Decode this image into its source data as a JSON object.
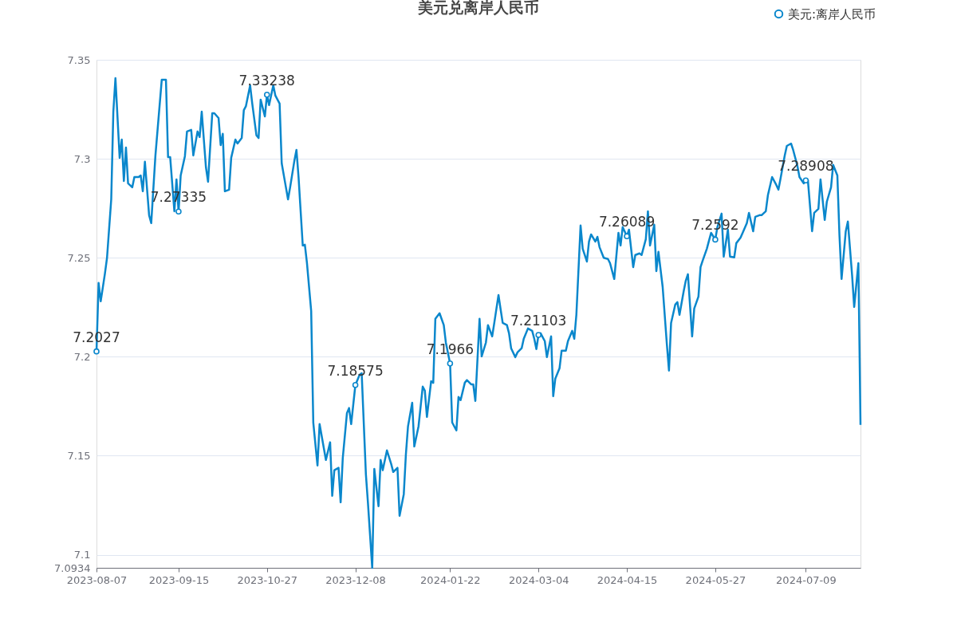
{
  "chart_data": {
    "type": "line",
    "title": "美元兑离岸人民币",
    "x": [
      "2023-08-07",
      "2023-08-08",
      "2023-08-09",
      "2023-08-11",
      "2023-08-12",
      "2023-08-14",
      "2023-08-15",
      "2023-08-16",
      "2023-08-18",
      "2023-08-19",
      "2023-08-20",
      "2023-08-21",
      "2023-08-22",
      "2023-08-24",
      "2023-08-25",
      "2023-08-27",
      "2023-08-28",
      "2023-08-29",
      "2023-08-30",
      "2023-09-01",
      "2023-09-02",
      "2023-09-04",
      "2023-09-07",
      "2023-09-09",
      "2023-09-10",
      "2023-09-11",
      "2023-09-13",
      "2023-09-14",
      "2023-09-15",
      "2023-09-16",
      "2023-09-18",
      "2023-09-19",
      "2023-09-21",
      "2023-09-22",
      "2023-09-24",
      "2023-09-25",
      "2023-09-26",
      "2023-09-28",
      "2023-09-29",
      "2023-10-01",
      "2023-10-02",
      "2023-10-04",
      "2023-10-05",
      "2023-10-06",
      "2023-10-07",
      "2023-10-09",
      "2023-10-10",
      "2023-10-12",
      "2023-10-13",
      "2023-10-15",
      "2023-10-16",
      "2023-10-17",
      "2023-10-19",
      "2023-10-20",
      "2023-10-22",
      "2023-10-23",
      "2023-10-24",
      "2023-10-26",
      "2023-10-27",
      "2023-10-28",
      "2023-10-30",
      "2023-10-31",
      "2023-11-02",
      "2023-11-03",
      "2023-11-05",
      "2023-11-06",
      "2023-11-07",
      "2023-11-09",
      "2023-11-10",
      "2023-11-11",
      "2023-11-13",
      "2023-11-14",
      "2023-11-15",
      "2023-11-17",
      "2023-11-18",
      "2023-11-20",
      "2023-11-21",
      "2023-11-23",
      "2023-11-24",
      "2023-11-26",
      "2023-11-27",
      "2023-11-28",
      "2023-11-30",
      "2023-12-01",
      "2023-12-02",
      "2023-12-04",
      "2023-12-05",
      "2023-12-06",
      "2023-12-08",
      "2023-12-10",
      "2023-12-11",
      "2023-12-13",
      "2023-12-14",
      "2023-12-16",
      "2023-12-17",
      "2023-12-19",
      "2023-12-20",
      "2023-12-21",
      "2023-12-23",
      "2023-12-25",
      "2023-12-26",
      "2023-12-28",
      "2023-12-29",
      "2023-12-31",
      "2024-01-01",
      "2024-01-02",
      "2024-01-04",
      "2024-01-05",
      "2024-01-07",
      "2024-01-09",
      "2024-01-10",
      "2024-01-11",
      "2024-01-13",
      "2024-01-14",
      "2024-01-15",
      "2024-01-17",
      "2024-01-19",
      "2024-01-20",
      "2024-01-22",
      "2024-01-23",
      "2024-01-25",
      "2024-01-26",
      "2024-01-27",
      "2024-01-29",
      "2024-01-30",
      "2024-02-01",
      "2024-02-02",
      "2024-02-03",
      "2024-02-05",
      "2024-02-06",
      "2024-02-08",
      "2024-02-09",
      "2024-02-11",
      "2024-02-12",
      "2024-02-14",
      "2024-02-15",
      "2024-02-16",
      "2024-02-18",
      "2024-02-19",
      "2024-02-20",
      "2024-02-22",
      "2024-02-23",
      "2024-02-25",
      "2024-02-26",
      "2024-02-28",
      "2024-03-01",
      "2024-03-02",
      "2024-03-03",
      "2024-03-04",
      "2024-03-05",
      "2024-03-07",
      "2024-03-08",
      "2024-03-10",
      "2024-03-11",
      "2024-03-12",
      "2024-03-14",
      "2024-03-15",
      "2024-03-17",
      "2024-03-18",
      "2024-03-20",
      "2024-03-21",
      "2024-03-22",
      "2024-03-24",
      "2024-03-25",
      "2024-03-27",
      "2024-03-28",
      "2024-03-29",
      "2024-03-31",
      "2024-04-01",
      "2024-04-02",
      "2024-04-04",
      "2024-04-06",
      "2024-04-07",
      "2024-04-08",
      "2024-04-09",
      "2024-04-11",
      "2024-04-12",
      "2024-04-13",
      "2024-04-15",
      "2024-04-16",
      "2024-04-18",
      "2024-04-19",
      "2024-04-21",
      "2024-04-22",
      "2024-04-24",
      "2024-04-25",
      "2024-04-26",
      "2024-04-28",
      "2024-04-29",
      "2024-04-30",
      "2024-05-02",
      "2024-05-04",
      "2024-05-05",
      "2024-05-06",
      "2024-05-08",
      "2024-05-09",
      "2024-05-10",
      "2024-05-12",
      "2024-05-13",
      "2024-05-14",
      "2024-05-16",
      "2024-05-17",
      "2024-05-19",
      "2024-05-20",
      "2024-05-21",
      "2024-05-23",
      "2024-05-24",
      "2024-05-25",
      "2024-05-27",
      "2024-05-28",
      "2024-05-30",
      "2024-05-31",
      "2024-06-02",
      "2024-06-03",
      "2024-06-05",
      "2024-06-06",
      "2024-06-08",
      "2024-06-09",
      "2024-06-11",
      "2024-06-12",
      "2024-06-14",
      "2024-06-15",
      "2024-06-17",
      "2024-06-18",
      "2024-06-20",
      "2024-06-21",
      "2024-06-23",
      "2024-06-25",
      "2024-06-26",
      "2024-06-27",
      "2024-06-29",
      "2024-06-30",
      "2024-07-02",
      "2024-07-03",
      "2024-07-05",
      "2024-07-06",
      "2024-07-08",
      "2024-07-09",
      "2024-07-10",
      "2024-07-12",
      "2024-07-13",
      "2024-07-15",
      "2024-07-16",
      "2024-07-18",
      "2024-07-19",
      "2024-07-21",
      "2024-07-22",
      "2024-07-24",
      "2024-07-25",
      "2024-07-26",
      "2024-07-28",
      "2024-07-29",
      "2024-07-31",
      "2024-08-01",
      "2024-08-03",
      "2024-08-04"
    ],
    "series": [
      {
        "name": "美元:离岸人民币",
        "color": "#0a87cc",
        "values": [
          7.2027,
          7.2373,
          7.228,
          7.242,
          7.25,
          7.2795,
          7.3238,
          7.3407,
          7.3005,
          7.3097,
          7.2888,
          7.3057,
          7.2876,
          7.2856,
          7.2908,
          7.2908,
          7.2916,
          7.2836,
          7.2985,
          7.2715,
          7.2675,
          7.3017,
          7.3399,
          7.3399,
          7.3009,
          7.3009,
          7.2735,
          7.2896,
          7.27335,
          7.2916,
          7.3013,
          7.3138,
          7.3146,
          7.3017,
          7.3138,
          7.311,
          7.3238,
          7.2957,
          7.2884,
          7.323,
          7.323,
          7.3206,
          7.3069,
          7.3126,
          7.2836,
          7.2844,
          7.3005,
          7.3097,
          7.3077,
          7.3105,
          7.3246,
          7.3266,
          7.3371,
          7.3279,
          7.3118,
          7.3105,
          7.3299,
          7.3214,
          7.33238,
          7.3271,
          7.3371,
          7.3319,
          7.3279,
          7.2977,
          7.2856,
          7.2795,
          7.2856,
          7.2989,
          7.3045,
          7.2908,
          7.2562,
          7.2566,
          7.2473,
          7.2232,
          7.1668,
          7.1451,
          7.166,
          7.1539,
          7.1479,
          7.1568,
          7.1298,
          7.1427,
          7.1439,
          7.1265,
          7.1487,
          7.1716,
          7.1741,
          7.166,
          7.18575,
          7.1909,
          7.1917,
          7.1406,
          7.1258,
          7.0934,
          7.1434,
          7.1245,
          7.1479,
          7.1427,
          7.1527,
          7.1459,
          7.1418,
          7.1439,
          7.1197,
          7.1306,
          7.1507,
          7.1648,
          7.1768,
          7.1547,
          7.1648,
          7.1849,
          7.1829,
          7.1696,
          7.1877,
          7.1869,
          7.2192,
          7.222,
          7.216,
          7.2071,
          7.1966,
          7.1668,
          7.1628,
          7.1797,
          7.1781,
          7.1869,
          7.1882,
          7.1861,
          7.1861,
          7.1777,
          7.2192,
          7.2002,
          7.2071,
          7.216,
          7.2103,
          7.2171,
          7.2312,
          7.224,
          7.2171,
          7.216,
          7.2119,
          7.2043,
          7.1998,
          7.2022,
          7.2043,
          7.2091,
          7.2143,
          7.2131,
          7.2091,
          7.2039,
          7.21103,
          7.2119,
          7.2079,
          7.1998,
          7.2103,
          7.1801,
          7.189,
          7.1942,
          7.2031,
          7.2031,
          7.2079,
          7.2131,
          7.2091,
          7.2212,
          7.2663,
          7.2546,
          7.2481,
          7.2582,
          7.2618,
          7.2582,
          7.2606,
          7.2554,
          7.25,
          7.2494,
          7.2473,
          7.2433,
          7.2393,
          7.2626,
          7.2562,
          7.2655,
          7.26089,
          7.2642,
          7.2453,
          7.2514,
          7.2522,
          7.2514,
          7.2594,
          7.2735,
          7.2562,
          7.2667,
          7.2433,
          7.253,
          7.2353,
          7.2063,
          7.193,
          7.2171,
          7.2264,
          7.2276,
          7.2212,
          7.2332,
          7.2385,
          7.2417,
          7.2103,
          7.2244,
          7.2304,
          7.2453,
          7.2485,
          7.2546,
          7.2586,
          7.2626,
          7.2592,
          7.2655,
          7.2723,
          7.2506,
          7.2642,
          7.2506,
          7.2502,
          7.2574,
          7.2602,
          7.2626,
          7.2675,
          7.2727,
          7.2634,
          7.2707,
          7.2715,
          7.2715,
          7.2735,
          7.2816,
          7.2908,
          7.2868,
          7.2844,
          7.29,
          7.3017,
          7.3065,
          7.3077,
          7.3045,
          7.2965,
          7.2908,
          7.2876,
          7.28908,
          7.2892,
          7.2634,
          7.2727,
          7.2747,
          7.2896,
          7.2691,
          7.2783,
          7.2856,
          7.2969,
          7.2916,
          7.2614,
          7.2393,
          7.2634,
          7.2683,
          7.2413,
          7.2252,
          7.2473,
          7.1656
        ]
      },
      {
        "type": "scatter",
        "color": "#0a87cc",
        "marker": "circle",
        "x": [
          "2023-08-07",
          "2023-09-15",
          "2023-10-27",
          "2023-12-08",
          "2024-01-22",
          "2024-03-04",
          "2024-04-15",
          "2024-05-27",
          "2024-07-09"
        ],
        "values": [
          7.2027,
          7.27335,
          7.33238,
          7.18575,
          7.1966,
          7.21103,
          7.26089,
          7.2592,
          7.28908
        ],
        "value_labels": [
          "7.2027",
          "7.27335",
          "7.33238",
          "7.18575",
          "7.1966",
          "7.21103",
          "7.26089",
          "7.2592",
          "7.28908"
        ]
      }
    ],
    "xlim": [
      "2023-08-07",
      "2024-08-04"
    ],
    "xticks": [
      "2023-08-07",
      "2023-09-15",
      "2023-10-27",
      "2023-12-08",
      "2024-01-22",
      "2024-03-04",
      "2024-04-15",
      "2024-05-27",
      "2024-07-09"
    ],
    "ylim": [
      7.0934,
      7.35
    ],
    "yticks": [
      7.0934,
      7.1,
      7.15,
      7.2,
      7.25,
      7.3,
      7.35
    ],
    "grid": "y",
    "legend": "top right"
  }
}
